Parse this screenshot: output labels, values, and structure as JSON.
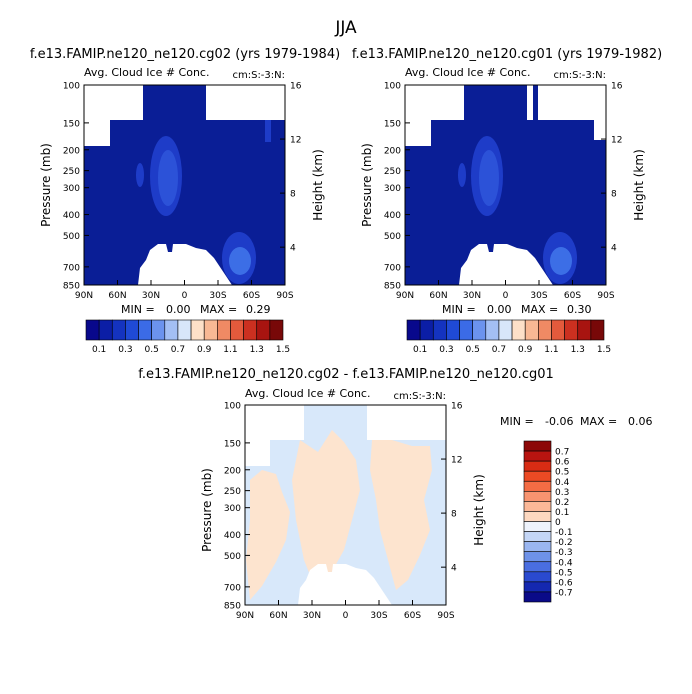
{
  "page_title": "JJA",
  "colors": {
    "dark_blue": "#0a1e96",
    "mid_blue": "#1e3cc8",
    "light_blue": "#3c6ee6",
    "diff_blue": "#d8e8fa",
    "diff_peach": "#fde4cf",
    "white": "#ffffff"
  },
  "chart_data": [
    {
      "type": "heatmap",
      "title": "f.e13.FAMIP.ne120_ne120.cg02 (yrs 1979-1984)",
      "subtitle_left": "Avg. Cloud Ice # Conc.",
      "subtitle_right": "cm:S:-3:N:",
      "ylabel": "Pressure (mb)",
      "ylabel_right": "Height (km)",
      "x_ticks": [
        "90N",
        "60N",
        "30N",
        "0",
        "30S",
        "60S",
        "90S"
      ],
      "y_ticks": [
        "100",
        "150",
        "200",
        "250",
        "300",
        "400",
        "500",
        "700",
        "850"
      ],
      "y_right_ticks": [
        "16",
        "12",
        "8",
        "4"
      ],
      "stats": {
        "min_label": "MIN =",
        "min": "0.00",
        "max_label": "MAX =",
        "max": "0.29"
      },
      "levels": [
        "0.1",
        "0.3",
        "0.5",
        "0.7",
        "0.9",
        "1.1",
        "1.3",
        "1.5"
      ],
      "palette": [
        "#08088c",
        "#0b1ea6",
        "#1433c0",
        "#1f4ad6",
        "#3b6be6",
        "#6b93ee",
        "#a3bff4",
        "#d8e6fa",
        "#fde0c8",
        "#f8b894",
        "#f08a64",
        "#e45a3c",
        "#cc3020",
        "#a81410",
        "#780808"
      ]
    },
    {
      "type": "heatmap",
      "title": "f.e13.FAMIP.ne120_ne120.cg01 (yrs 1979-1982)",
      "subtitle_left": "Avg. Cloud Ice # Conc.",
      "subtitle_right": "cm:S:-3:N:",
      "ylabel": "Pressure (mb)",
      "ylabel_right": "Height (km)",
      "x_ticks": [
        "90N",
        "60N",
        "30N",
        "0",
        "30S",
        "60S",
        "90S"
      ],
      "y_ticks": [
        "100",
        "150",
        "200",
        "250",
        "300",
        "400",
        "500",
        "700",
        "850"
      ],
      "y_right_ticks": [
        "16",
        "12",
        "8",
        "4"
      ],
      "stats": {
        "min_label": "MIN =",
        "min": "0.00",
        "max_label": "MAX =",
        "max": "0.30"
      },
      "levels": [
        "0.1",
        "0.3",
        "0.5",
        "0.7",
        "0.9",
        "1.1",
        "1.3",
        "1.5"
      ],
      "palette": [
        "#08088c",
        "#0b1ea6",
        "#1433c0",
        "#1f4ad6",
        "#3b6be6",
        "#6b93ee",
        "#a3bff4",
        "#d8e6fa",
        "#fde0c8",
        "#f8b894",
        "#f08a64",
        "#e45a3c",
        "#cc3020",
        "#a81410",
        "#780808"
      ]
    },
    {
      "type": "heatmap",
      "title": "f.e13.FAMIP.ne120_ne120.cg02 - f.e13.FAMIP.ne120_ne120.cg01",
      "subtitle_left": "Avg. Cloud Ice # Conc.",
      "subtitle_right": "cm:S:-3:N:",
      "ylabel": "Pressure (mb)",
      "ylabel_right": "Height (km)",
      "x_ticks": [
        "90N",
        "60N",
        "30N",
        "0",
        "30S",
        "60S",
        "90S"
      ],
      "y_ticks": [
        "100",
        "150",
        "200",
        "250",
        "300",
        "400",
        "500",
        "700",
        "850"
      ],
      "y_right_ticks": [
        "16",
        "12",
        "8",
        "4"
      ],
      "stats": {
        "min_label": "MIN =",
        "min": "-0.06",
        "max_label": "MAX =",
        "max": "0.06"
      },
      "levels": [
        "0.7",
        "0.6",
        "0.5",
        "0.4",
        "0.3",
        "0.2",
        "0.1",
        "0",
        "-0.1",
        "-0.2",
        "-0.3",
        "-0.4",
        "-0.5",
        "-0.6",
        "-0.7"
      ],
      "palette": [
        "#8c0808",
        "#b81410",
        "#d82c14",
        "#ec4a24",
        "#f46c44",
        "#f89470",
        "#fbb898",
        "#fdd8c0",
        "#eef3fc",
        "#c4d6f6",
        "#9ab6f0",
        "#6e92e8",
        "#4a6ee0",
        "#2a4ad0",
        "#1428b0",
        "#0a0a88"
      ]
    }
  ]
}
